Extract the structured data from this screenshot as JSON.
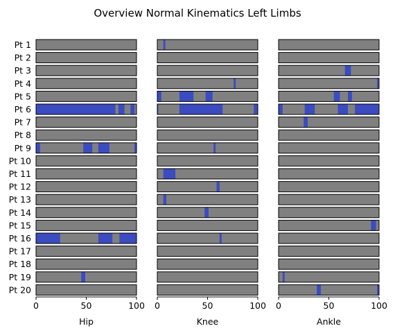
{
  "chart_data": {
    "type": "heatmap",
    "title": "Overview Normal Kinematics Left Limbs",
    "rows": [
      "Pt 1",
      "Pt 2",
      "Pt 3",
      "Pt 4",
      "Pt 5",
      "Pt 6",
      "Pt 7",
      "Pt 8",
      "Pt 9",
      "Pt 10",
      "Pt 11",
      "Pt 12",
      "Pt 13",
      "Pt 14",
      "Pt 15",
      "Pt 16",
      "Pt 17",
      "Pt 18",
      "Pt 19",
      "Pt 20"
    ],
    "xlim": [
      0,
      100
    ],
    "xticks": [
      0,
      50,
      100
    ],
    "colors": {
      "normal": "#808080",
      "abnormal": "#3b4cc0",
      "border": "#000000"
    },
    "panels": [
      {
        "xlabel": "Hip",
        "segments": [
          [],
          [],
          [],
          [],
          [],
          [
            [
              0,
              79
            ],
            [
              82,
              88
            ],
            [
              94,
              98
            ]
          ],
          [],
          [],
          [
            [
              0,
              4
            ],
            [
              47,
              56
            ],
            [
              62,
              73
            ],
            [
              98,
              100
            ]
          ],
          [],
          [],
          [],
          [],
          [],
          [],
          [
            [
              0,
              24
            ],
            [
              62,
              76
            ],
            [
              83,
              100
            ]
          ],
          [],
          [],
          [
            [
              45,
              49
            ]
          ],
          []
        ]
      },
      {
        "xlabel": "Knee",
        "segments": [
          [
            [
              6,
              8
            ]
          ],
          [],
          [],
          [
            [
              76,
              78
            ]
          ],
          [
            [
              0,
              4
            ],
            [
              22,
              36
            ],
            [
              48,
              55
            ]
          ],
          [
            [
              0,
              1
            ],
            [
              22,
              65
            ],
            [
              96,
              100
            ]
          ],
          [],
          [],
          [
            [
              56,
              58
            ]
          ],
          [],
          [
            [
              6,
              18
            ]
          ],
          [
            [
              59,
              62
            ]
          ],
          [
            [
              6,
              9
            ]
          ],
          [
            [
              47,
              51
            ]
          ],
          [],
          [
            [
              62,
              64
            ]
          ],
          [],
          [],
          [],
          []
        ]
      },
      {
        "xlabel": "Ankle",
        "segments": [
          [],
          [],
          [
            [
              66,
              72
            ]
          ],
          [
            [
              98,
              100
            ]
          ],
          [
            [
              55,
              61
            ],
            [
              69,
              73
            ]
          ],
          [
            [
              0,
              4
            ],
            [
              26,
              36
            ],
            [
              59,
              69
            ],
            [
              76,
              100
            ]
          ],
          [
            [
              25,
              29
            ]
          ],
          [],
          [],
          [],
          [],
          [],
          [],
          [],
          [
            [
              92,
              97
            ]
          ],
          [],
          [],
          [],
          [
            [
              4,
              6
            ]
          ],
          [
            [
              38,
              42
            ],
            [
              98,
              100
            ]
          ]
        ]
      }
    ]
  }
}
